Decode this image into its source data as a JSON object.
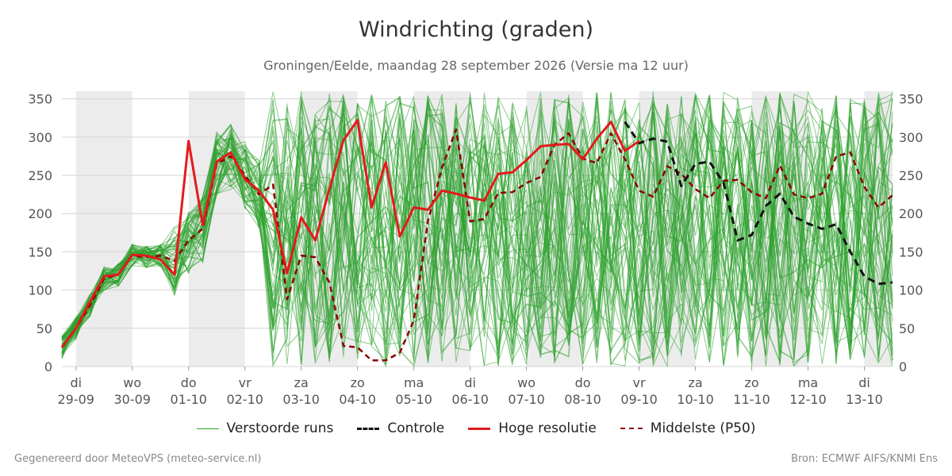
{
  "title": "Windrichting (graden)",
  "subtitle": "Groningen/Eelde, maandag 28 september 2026 (Versie ma 12 uur)",
  "footer_left": "Gegenereerd door MeteoVPS (meteo-service.nl)",
  "footer_right": "Bron: ECMWF AIFS/KNMI Ens",
  "legend": [
    {
      "label": "Verstoorde runs",
      "color": "#2ca02c",
      "style": "thin-solid"
    },
    {
      "label": "Controle",
      "color": "#111111",
      "style": "dashed"
    },
    {
      "label": "Hoge resolutie",
      "color": "#e31a1c",
      "style": "thick-solid"
    },
    {
      "label": "Middelste (P50)",
      "color": "#8b0000",
      "style": "dashed"
    }
  ],
  "chart_data": {
    "type": "line",
    "title": "Windrichting (graden)",
    "ylim": [
      0,
      360
    ],
    "y_ticks": [
      0,
      50,
      100,
      150,
      200,
      250,
      300,
      350
    ],
    "x_range_days": [
      -0.25,
      14.5
    ],
    "grid": true,
    "weekend_shading": "alternating days",
    "day_labels": [
      {
        "day": "di",
        "date": "29-09"
      },
      {
        "day": "wo",
        "date": "30-09"
      },
      {
        "day": "do",
        "date": "01-10"
      },
      {
        "day": "vr",
        "date": "02-10"
      },
      {
        "day": "za",
        "date": "03-10"
      },
      {
        "day": "zo",
        "date": "04-10"
      },
      {
        "day": "ma",
        "date": "05-10"
      },
      {
        "day": "di",
        "date": "06-10"
      },
      {
        "day": "wo",
        "date": "07-10"
      },
      {
        "day": "do",
        "date": "08-10"
      },
      {
        "day": "vr",
        "date": "09-10"
      },
      {
        "day": "za",
        "date": "10-10"
      },
      {
        "day": "zo",
        "date": "11-10"
      },
      {
        "day": "ma",
        "date": "12-10"
      },
      {
        "day": "di",
        "date": "13-10"
      }
    ],
    "series": [
      {
        "name": "Hoge resolutie",
        "color": "#e31a1c",
        "x": [
          -0.25,
          0,
          0.25,
          0.5,
          0.75,
          1,
          1.25,
          1.5,
          1.75,
          2,
          2.25,
          2.5,
          2.75,
          3,
          3.25,
          3.5,
          3.75,
          4,
          4.25,
          4.5,
          4.75,
          5,
          5.25,
          5.5,
          5.75,
          6,
          6.25,
          6.5,
          6.75,
          7,
          7.25,
          7.5,
          7.75,
          8,
          8.25,
          8.5,
          8.75,
          9,
          9.25,
          9.5,
          9.75,
          10
        ],
        "values": [
          25,
          50,
          85,
          118,
          120,
          146,
          145,
          140,
          120,
          295,
          185,
          268,
          280,
          245,
          230,
          205,
          122,
          195,
          165,
          232,
          296,
          322,
          208,
          267,
          170,
          208,
          205,
          230,
          226,
          221,
          217,
          252,
          254,
          270,
          288,
          290,
          291,
          271,
          298,
          320,
          282,
          295
        ]
      },
      {
        "name": "Controle",
        "color": "#111111",
        "x": [
          9.75,
          10,
          10.25,
          10.5,
          10.75,
          11,
          11.25,
          11.5,
          11.75,
          12,
          12.25,
          12.5,
          12.75,
          13,
          13.25,
          13.5,
          13.75,
          14,
          14.25,
          14.5
        ],
        "values": [
          320,
          292,
          298,
          294,
          236,
          265,
          268,
          240,
          165,
          172,
          210,
          226,
          196,
          187,
          180,
          186,
          150,
          118,
          108,
          110
        ]
      },
      {
        "name": "Middelste (P50)",
        "color": "#8b0000",
        "x": [
          -0.25,
          0,
          0.25,
          0.5,
          0.75,
          1,
          1.25,
          1.5,
          1.75,
          2,
          2.25,
          2.5,
          2.75,
          3,
          3.25,
          3.5,
          3.75,
          4,
          4.25,
          4.5,
          4.75,
          5,
          5.25,
          5.5,
          5.75,
          6,
          6.25,
          6.5,
          6.75,
          7,
          7.25,
          7.5,
          7.75,
          8,
          8.25,
          8.5,
          8.75,
          9,
          9.25,
          9.5,
          9.75,
          10,
          10.25,
          10.5,
          10.75,
          11,
          11.25,
          11.5,
          11.75,
          12,
          12.25,
          12.5,
          12.75,
          13,
          13.25,
          13.5,
          13.75,
          14,
          14.25,
          14.5
        ],
        "values": [
          25,
          50,
          80,
          115,
          120,
          145,
          143,
          145,
          138,
          165,
          180,
          265,
          275,
          250,
          225,
          238,
          88,
          145,
          143,
          110,
          27,
          25,
          8,
          8,
          18,
          60,
          190,
          260,
          310,
          190,
          193,
          227,
          228,
          240,
          248,
          290,
          305,
          272,
          266,
          305,
          271,
          230,
          222,
          262,
          252,
          232,
          220,
          243,
          244,
          228,
          220,
          263,
          225,
          220,
          226,
          275,
          280,
          235,
          208,
          224
        ]
      }
    ],
    "ensemble_note": "51 verstoorde runs, groen, sterk verspreid 0-360 na 03-10"
  }
}
